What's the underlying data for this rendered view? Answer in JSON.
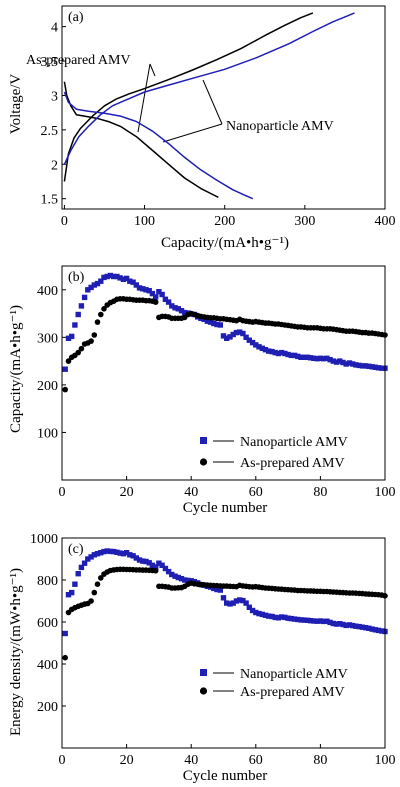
{
  "chart_data": [
    {
      "type": "line",
      "panel_label": "(a)",
      "xlabel": "Capacity/(mA•h•g⁻¹)",
      "ylabel": "Voltage/V",
      "xlim": [
        -3,
        400
      ],
      "ylim": [
        1.35,
        4.3
      ],
      "xticks": [
        0,
        100,
        200,
        300,
        400
      ],
      "yticks": [
        1.5,
        2.0,
        2.5,
        3.0,
        3.5,
        4.0
      ],
      "annotations": [
        "As-prepared AMV",
        "Nanoparticle AMV"
      ],
      "series": [
        {
          "color": "#000000",
          "role": "discharge",
          "x": [
            0,
            3,
            8,
            15,
            25,
            40,
            55,
            70,
            90,
            110,
            130,
            150,
            170,
            185,
            192
          ],
          "y": [
            3.2,
            3.0,
            2.85,
            2.72,
            2.7,
            2.67,
            2.62,
            2.55,
            2.4,
            2.2,
            2.0,
            1.8,
            1.65,
            1.56,
            1.52
          ]
        },
        {
          "color": "#000000",
          "role": "charge",
          "x": [
            0,
            5,
            12,
            20,
            35,
            50,
            65,
            80,
            100,
            130,
            160,
            190,
            220,
            250,
            275,
            295,
            310
          ],
          "y": [
            1.75,
            2.15,
            2.38,
            2.52,
            2.7,
            2.85,
            2.95,
            3.02,
            3.1,
            3.23,
            3.37,
            3.52,
            3.68,
            3.87,
            4.02,
            4.13,
            4.2
          ]
        },
        {
          "color": "#1f1fb4",
          "role": "discharge",
          "x": [
            0,
            5,
            15,
            30,
            50,
            70,
            90,
            110,
            130,
            150,
            170,
            190,
            210,
            225,
            235
          ],
          "y": [
            3.05,
            2.9,
            2.8,
            2.77,
            2.74,
            2.7,
            2.62,
            2.48,
            2.3,
            2.1,
            1.92,
            1.77,
            1.63,
            1.55,
            1.5
          ]
        },
        {
          "color": "#1f1fb4",
          "role": "charge",
          "x": [
            0,
            8,
            18,
            30,
            45,
            60,
            80,
            100,
            130,
            160,
            200,
            240,
            280,
            310,
            335,
            352,
            362
          ],
          "y": [
            2.0,
            2.2,
            2.4,
            2.55,
            2.72,
            2.85,
            2.95,
            3.05,
            3.15,
            3.25,
            3.38,
            3.55,
            3.75,
            3.93,
            4.07,
            4.15,
            4.2
          ]
        }
      ]
    },
    {
      "type": "scatter",
      "panel_label": "(b)",
      "xlabel": "Cycle number",
      "ylabel": "Capacity/(mA•h•g⁻¹)",
      "xlim": [
        0,
        100
      ],
      "ylim": [
        0,
        450
      ],
      "xticks": [
        0,
        20,
        40,
        60,
        80,
        100
      ],
      "yticks": [
        100,
        200,
        300,
        400
      ],
      "legend_position": "bottom-left",
      "series": [
        {
          "name": "Nanoparticle AMV",
          "marker": "square",
          "color": "#1f1fb4",
          "x": [
            1,
            2,
            3,
            4,
            5,
            6,
            7,
            8,
            9,
            10,
            11,
            12,
            13,
            14,
            15,
            16,
            17,
            18,
            19,
            20,
            21,
            22,
            23,
            24,
            25,
            26,
            27,
            28,
            29,
            30,
            31,
            32,
            33,
            34,
            35,
            36,
            37,
            38,
            39,
            40,
            41,
            42,
            43,
            44,
            45,
            46,
            47,
            48,
            49,
            50,
            51,
            52,
            53,
            54,
            55,
            56,
            57,
            58,
            59,
            60,
            61,
            62,
            63,
            64,
            65,
            66,
            67,
            68,
            69,
            70,
            71,
            72,
            73,
            74,
            75,
            76,
            77,
            78,
            79,
            80,
            81,
            82,
            83,
            84,
            85,
            86,
            87,
            88,
            89,
            90,
            91,
            92,
            93,
            94,
            95,
            96,
            97,
            98,
            99,
            100
          ],
          "y": [
            233,
            298,
            302,
            326,
            348,
            366,
            384,
            400,
            405,
            410,
            413,
            418,
            426,
            428,
            430,
            428,
            428,
            425,
            422,
            424,
            418,
            416,
            410,
            404,
            402,
            400,
            398,
            392,
            385,
            396,
            390,
            380,
            374,
            366,
            362,
            360,
            356,
            352,
            351,
            349,
            348,
            343,
            340,
            338,
            334,
            332,
            329,
            327,
            326,
            303,
            298,
            301,
            306,
            310,
            311,
            308,
            300,
            294,
            289,
            284,
            280,
            277,
            274,
            271,
            270,
            268,
            266,
            268,
            266,
            264,
            262,
            262,
            260,
            258,
            258,
            258,
            257,
            256,
            255,
            256,
            255,
            256,
            253,
            250,
            248,
            250,
            247,
            244,
            246,
            244,
            242,
            241,
            240,
            240,
            239,
            238,
            237,
            236,
            235,
            235
          ]
        },
        {
          "name": "As-prepared AMV",
          "marker": "circle",
          "color": "#000000",
          "x": [
            1,
            2,
            3,
            4,
            5,
            6,
            7,
            8,
            9,
            10,
            11,
            12,
            13,
            14,
            15,
            16,
            17,
            18,
            19,
            20,
            21,
            22,
            23,
            24,
            25,
            26,
            27,
            28,
            29,
            30,
            31,
            32,
            33,
            34,
            35,
            36,
            37,
            38,
            39,
            40,
            41,
            42,
            43,
            44,
            45,
            46,
            47,
            48,
            49,
            50,
            51,
            52,
            53,
            54,
            55,
            56,
            57,
            58,
            59,
            60,
            61,
            62,
            63,
            64,
            65,
            66,
            67,
            68,
            69,
            70,
            71,
            72,
            73,
            74,
            75,
            76,
            77,
            78,
            79,
            80,
            81,
            82,
            83,
            84,
            85,
            86,
            87,
            88,
            89,
            90,
            91,
            92,
            93,
            94,
            95,
            96,
            97,
            98,
            99,
            100
          ],
          "y": [
            190,
            250,
            258,
            262,
            268,
            276,
            286,
            288,
            292,
            305,
            332,
            348,
            360,
            368,
            373,
            376,
            380,
            381,
            381,
            380,
            380,
            379,
            378,
            378,
            378,
            377,
            377,
            376,
            374,
            342,
            344,
            344,
            343,
            340,
            340,
            340,
            340,
            342,
            348,
            350,
            348,
            346,
            344,
            343,
            342,
            341,
            341,
            340,
            339,
            339,
            338,
            337,
            336,
            335,
            338,
            335,
            334,
            333,
            332,
            333,
            332,
            331,
            330,
            330,
            329,
            328,
            328,
            327,
            326,
            325,
            324,
            323,
            322,
            322,
            321,
            320,
            320,
            320,
            320,
            319,
            318,
            318,
            318,
            317,
            316,
            315,
            314,
            313,
            313,
            313,
            312,
            311,
            310,
            310,
            309,
            309,
            308,
            307,
            306,
            305
          ]
        }
      ]
    },
    {
      "type": "scatter",
      "panel_label": "(c)",
      "xlabel": "Cycle number",
      "ylabel": "Energy density/(mW•h•g⁻¹)",
      "xlim": [
        0,
        100
      ],
      "ylim": [
        0,
        1000
      ],
      "xticks": [
        0,
        20,
        40,
        60,
        80,
        100
      ],
      "yticks": [
        200,
        400,
        600,
        800,
        1000
      ],
      "legend_position": "bottom-left",
      "series": [
        {
          "name": "Nanoparticle AMV",
          "marker": "square",
          "color": "#1f1fb4",
          "x": [
            1,
            2,
            3,
            4,
            5,
            6,
            7,
            8,
            9,
            10,
            11,
            12,
            13,
            14,
            15,
            16,
            17,
            18,
            19,
            20,
            21,
            22,
            23,
            24,
            25,
            26,
            27,
            28,
            29,
            30,
            31,
            32,
            33,
            34,
            35,
            36,
            37,
            38,
            39,
            40,
            41,
            42,
            43,
            44,
            45,
            46,
            47,
            48,
            49,
            50,
            51,
            52,
            53,
            54,
            55,
            56,
            57,
            58,
            59,
            60,
            61,
            62,
            63,
            64,
            65,
            66,
            67,
            68,
            69,
            70,
            71,
            72,
            73,
            74,
            75,
            76,
            77,
            78,
            79,
            80,
            81,
            82,
            83,
            84,
            85,
            86,
            87,
            88,
            89,
            90,
            91,
            92,
            93,
            94,
            95,
            96,
            97,
            98,
            99,
            100
          ],
          "y": [
            545,
            730,
            740,
            780,
            830,
            860,
            880,
            900,
            910,
            920,
            925,
            930,
            935,
            938,
            936,
            935,
            932,
            928,
            925,
            930,
            920,
            915,
            905,
            895,
            890,
            888,
            882,
            870,
            862,
            880,
            870,
            855,
            840,
            826,
            818,
            812,
            806,
            800,
            798,
            796,
            792,
            786,
            778,
            775,
            770,
            766,
            760,
            755,
            752,
            715,
            690,
            686,
            690,
            700,
            705,
            702,
            690,
            670,
            655,
            645,
            640,
            636,
            632,
            628,
            626,
            622,
            620,
            624,
            622,
            618,
            616,
            614,
            612,
            610,
            609,
            608,
            606,
            605,
            604,
            605,
            603,
            604,
            598,
            593,
            590,
            592,
            588,
            584,
            586,
            583,
            580,
            578,
            575,
            573,
            570,
            566,
            563,
            560,
            557,
            555
          ]
        },
        {
          "name": "As-prepared AMV",
          "marker": "circle",
          "color": "#000000",
          "x": [
            1,
            2,
            3,
            4,
            5,
            6,
            7,
            8,
            9,
            10,
            11,
            12,
            13,
            14,
            15,
            16,
            17,
            18,
            19,
            20,
            21,
            22,
            23,
            24,
            25,
            26,
            27,
            28,
            29,
            30,
            31,
            32,
            33,
            34,
            35,
            36,
            37,
            38,
            39,
            40,
            41,
            42,
            43,
            44,
            45,
            46,
            47,
            48,
            49,
            50,
            51,
            52,
            53,
            54,
            55,
            56,
            57,
            58,
            59,
            60,
            61,
            62,
            63,
            64,
            65,
            66,
            67,
            68,
            69,
            70,
            71,
            72,
            73,
            74,
            75,
            76,
            77,
            78,
            79,
            80,
            81,
            82,
            83,
            84,
            85,
            86,
            87,
            88,
            89,
            90,
            91,
            92,
            93,
            94,
            95,
            96,
            97,
            98,
            99,
            100
          ],
          "y": [
            430,
            645,
            660,
            668,
            675,
            680,
            685,
            688,
            700,
            740,
            780,
            810,
            828,
            838,
            845,
            848,
            850,
            851,
            851,
            850,
            850,
            849,
            848,
            848,
            847,
            847,
            846,
            845,
            844,
            770,
            770,
            768,
            766,
            762,
            762,
            763,
            764,
            770,
            780,
            785,
            782,
            780,
            778,
            777,
            776,
            775,
            774,
            773,
            772,
            771,
            771,
            770,
            769,
            768,
            775,
            772,
            770,
            768,
            767,
            768,
            766,
            764,
            762,
            761,
            760,
            758,
            757,
            756,
            755,
            754,
            753,
            752,
            750,
            750,
            749,
            748,
            748,
            747,
            746,
            746,
            745,
            745,
            744,
            743,
            742,
            741,
            740,
            739,
            738,
            738,
            737,
            736,
            735,
            734,
            733,
            732,
            731,
            730,
            728,
            725
          ]
        }
      ]
    }
  ]
}
